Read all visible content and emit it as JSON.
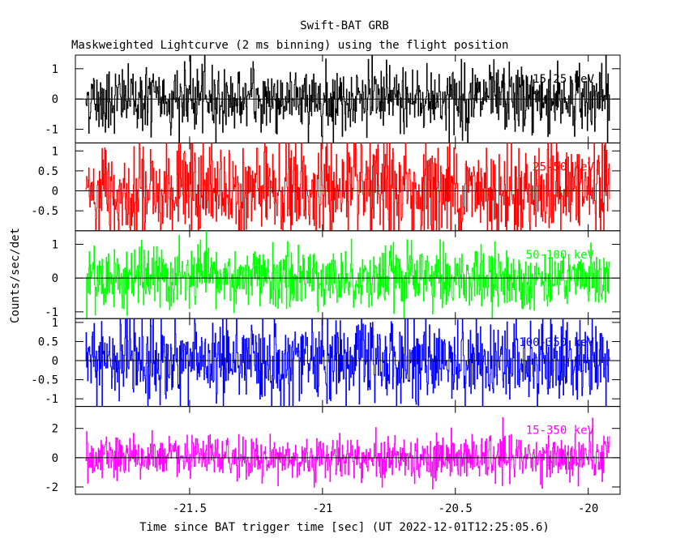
{
  "chart_data": {
    "type": "line",
    "title": "Swift-BAT GRB",
    "subtitle": "Maskweighted Lightcurve (2 ms binning) using the flight position",
    "xlabel": "Time since BAT trigger time [sec] (UT 2022-12-01T12:25:05.6)",
    "ylabel": "Counts/sec/det",
    "xlim": [
      -21.93,
      -19.88
    ],
    "x_ticks": [
      -21.5,
      -21,
      -20.5,
      -20
    ],
    "x_tick_labels": [
      "-21.5",
      "-21",
      "-20.5",
      "-20"
    ],
    "binning_sec": 0.002,
    "panels": [
      {
        "name": "15-25 keV",
        "color": "#000000",
        "ylim": [
          -1.45,
          1.45
        ],
        "yticks": [
          -1,
          0,
          1
        ],
        "ytick_labels": [
          "-1",
          "0",
          "1"
        ],
        "amplitude": 0.55,
        "trend": 0.0
      },
      {
        "name": "25-50 keV",
        "color": "#ff0000",
        "ylim": [
          -1.0,
          1.2
        ],
        "yticks": [
          -0.5,
          0,
          0.5,
          1
        ],
        "ytick_labels": [
          "-0.5",
          "0",
          "0.5",
          "1"
        ],
        "amplitude": 0.62,
        "trend": 0.12
      },
      {
        "name": "50-100 keV",
        "color": "#00ff00",
        "ylim": [
          -1.2,
          1.4
        ],
        "yticks": [
          -1,
          0,
          1
        ],
        "ytick_labels": [
          "-1",
          "0",
          "1"
        ],
        "amplitude": 0.45,
        "trend": 0.08
      },
      {
        "name": "100-350 keV",
        "color": "#0000ff",
        "ylim": [
          -1.2,
          1.1
        ],
        "yticks": [
          -1,
          -0.5,
          0,
          0.5,
          1
        ],
        "ytick_labels": [
          "-1",
          "-0.5",
          "0",
          "0.5",
          "1"
        ],
        "amplitude": 0.55,
        "trend": 0.05
      },
      {
        "name": "15-350 keV",
        "color": "#ff00ff",
        "ylim": [
          -2.5,
          3.5
        ],
        "yticks": [
          -2,
          0,
          2
        ],
        "ytick_labels": [
          "-2",
          "0",
          "2"
        ],
        "amplitude": 0.75,
        "trend": 0.35
      }
    ]
  }
}
